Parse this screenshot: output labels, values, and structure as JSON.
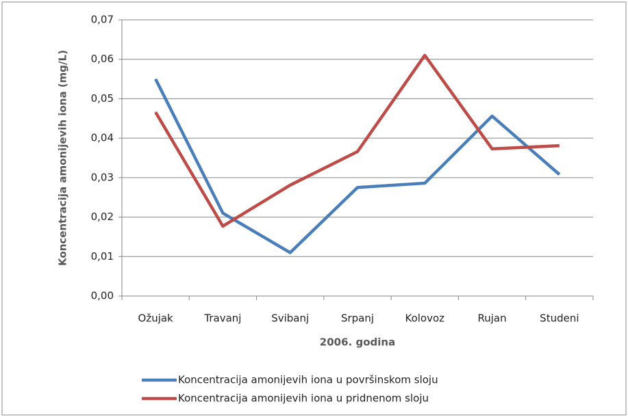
{
  "chart_data": {
    "type": "line",
    "categories": [
      "Ožujak",
      "Travanj",
      "Svibanj",
      "Srpanj",
      "Kolovoz",
      "Rujan",
      "Studeni"
    ],
    "series": [
      {
        "name": "Koncentracija amonijevih iona u površinskom sloju",
        "color": "#4a7ebb",
        "values": [
          0.055,
          0.021,
          0.011,
          0.0275,
          0.0286,
          0.0456,
          0.0308
        ]
      },
      {
        "name": "Koncentracija amonijevih iona u pridnenom sloju",
        "color": "#be4b48",
        "values": [
          0.0466,
          0.0177,
          0.0281,
          0.0366,
          0.061,
          0.0373,
          0.0381
        ]
      }
    ],
    "xlabel": "2006. godina",
    "ylabel": "Koncentracija amonijevih iona (mg/L)",
    "ylim": [
      0,
      0.07
    ],
    "yticks": [
      {
        "value": 0,
        "label": "0,00"
      },
      {
        "value": 0.01,
        "label": "0,01"
      },
      {
        "value": 0.02,
        "label": "0,02"
      },
      {
        "value": 0.03,
        "label": "0,03"
      },
      {
        "value": 0.04,
        "label": "0,04"
      },
      {
        "value": 0.05,
        "label": "0,05"
      },
      {
        "value": 0.06,
        "label": "0,06"
      },
      {
        "value": 0.07,
        "label": "0,07"
      }
    ],
    "grid": true,
    "legend": "bottom"
  }
}
